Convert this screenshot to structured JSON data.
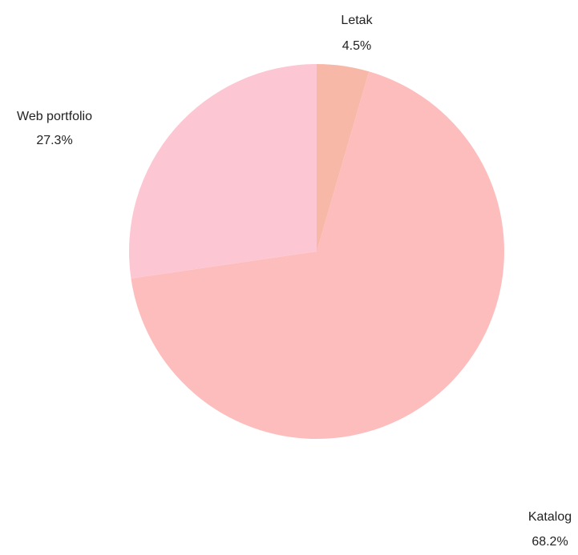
{
  "chart_data": {
    "type": "pie",
    "title": "",
    "slices": [
      {
        "name": "Letak",
        "value": 4.5,
        "percent_label": "4.5%",
        "color": "#F7B8A8"
      },
      {
        "name": "Katalog",
        "value": 68.2,
        "percent_label": "68.2%",
        "color": "#FDBDBD"
      },
      {
        "name": "Web portfolio",
        "value": 27.3,
        "percent_label": "27.3%",
        "color": "#FDC6D3"
      }
    ],
    "start_angle": "12 o'clock",
    "direction": "clockwise",
    "legend": "none"
  }
}
